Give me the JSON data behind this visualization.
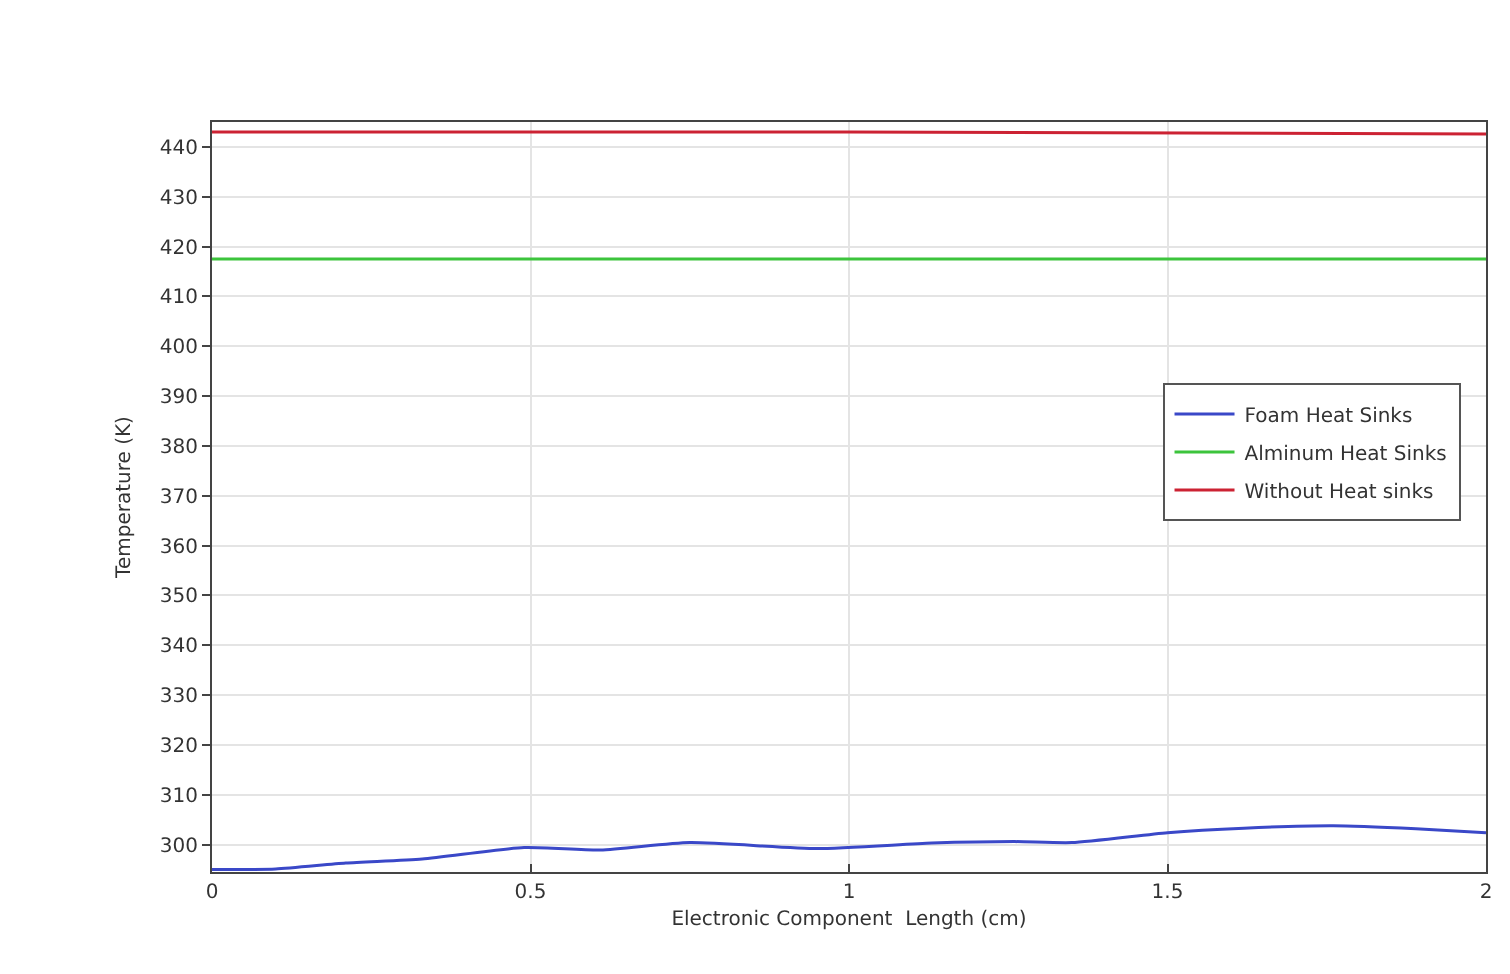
{
  "chart_data": {
    "type": "line",
    "xlabel": "Electronic Component  Length (cm)",
    "ylabel": "Temperature (K)",
    "xlim": [
      0,
      2
    ],
    "xticks": [
      0,
      0.5,
      1,
      1.5,
      2
    ],
    "ylim": [
      294.5,
      445
    ],
    "yticks": [
      300,
      310,
      320,
      330,
      340,
      350,
      360,
      370,
      380,
      390,
      400,
      410,
      420,
      430,
      440
    ],
    "grid": true,
    "legend": "right",
    "marker": "none",
    "line_style": "solid",
    "series": [
      {
        "name": "Foam Heat Sinks",
        "color": "#3a48c8",
        "x": [
          0,
          0.1,
          0.21,
          0.33,
          0.49,
          0.61,
          0.75,
          0.95,
          1.13,
          1.26,
          1.35,
          1.5,
          1.62,
          1.76,
          1.89,
          2
        ],
        "values": [
          295,
          295.1,
          296.3,
          297.1,
          299.4,
          298.9,
          300.4,
          299.2,
          300.3,
          300.6,
          300.4,
          302.4,
          303.3,
          303.8,
          303.2,
          302.4
        ]
      },
      {
        "name": "Alminum Heat Sinks",
        "color": "#3cc43c",
        "x": [
          0,
          2
        ],
        "values": [
          417.5,
          417.5
        ]
      },
      {
        "name": "Without Heat sinks",
        "color": "#cc2233",
        "x": [
          0,
          1,
          2
        ],
        "values": [
          443,
          443,
          442.6
        ]
      }
    ]
  }
}
